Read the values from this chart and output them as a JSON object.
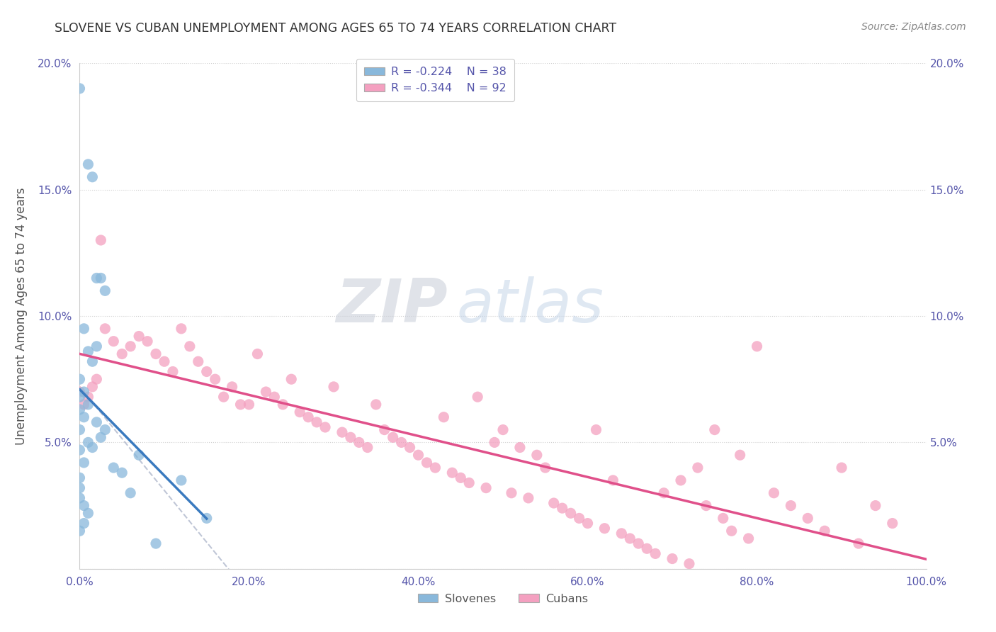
{
  "title": "SLOVENE VS CUBAN UNEMPLOYMENT AMONG AGES 65 TO 74 YEARS CORRELATION CHART",
  "source": "Source: ZipAtlas.com",
  "ylabel": "Unemployment Among Ages 65 to 74 years",
  "xlim": [
    0,
    1.0
  ],
  "ylim": [
    0,
    0.2
  ],
  "xticks": [
    0.0,
    0.2,
    0.4,
    0.6,
    0.8,
    1.0
  ],
  "yticks": [
    0.0,
    0.05,
    0.1,
    0.15,
    0.2
  ],
  "yticklabels": [
    "",
    "5.0%",
    "10.0%",
    "15.0%",
    "20.0%"
  ],
  "slovene_color": "#89b8db",
  "cuban_color": "#f4a0c0",
  "trendline_slovene_color": "#3a7abf",
  "trendline_cuban_color": "#e0508a",
  "refline_color": "#b0b8cc",
  "background_color": "#ffffff",
  "grid_color": "#d0d0d0",
  "tick_color": "#5555aa",
  "watermark_color": "#ccd5e8",
  "slovene_x": [
    0.0,
    0.0,
    0.0,
    0.0,
    0.0,
    0.0,
    0.0,
    0.0,
    0.0,
    0.0,
    0.005,
    0.005,
    0.005,
    0.005,
    0.005,
    0.005,
    0.01,
    0.01,
    0.01,
    0.01,
    0.01,
    0.015,
    0.015,
    0.015,
    0.02,
    0.02,
    0.02,
    0.025,
    0.025,
    0.03,
    0.03,
    0.04,
    0.05,
    0.06,
    0.07,
    0.09,
    0.12,
    0.15
  ],
  "slovene_y": [
    0.19,
    0.075,
    0.068,
    0.063,
    0.055,
    0.047,
    0.036,
    0.032,
    0.028,
    0.015,
    0.095,
    0.07,
    0.06,
    0.042,
    0.025,
    0.018,
    0.16,
    0.086,
    0.065,
    0.05,
    0.022,
    0.155,
    0.082,
    0.048,
    0.115,
    0.088,
    0.058,
    0.115,
    0.052,
    0.11,
    0.055,
    0.04,
    0.038,
    0.03,
    0.045,
    0.01,
    0.035,
    0.02
  ],
  "cuban_x": [
    0.0,
    0.005,
    0.01,
    0.015,
    0.02,
    0.025,
    0.03,
    0.04,
    0.05,
    0.06,
    0.07,
    0.08,
    0.09,
    0.1,
    0.11,
    0.12,
    0.13,
    0.14,
    0.15,
    0.16,
    0.17,
    0.18,
    0.19,
    0.2,
    0.21,
    0.22,
    0.23,
    0.24,
    0.25,
    0.26,
    0.27,
    0.28,
    0.29,
    0.3,
    0.31,
    0.32,
    0.33,
    0.34,
    0.35,
    0.36,
    0.37,
    0.38,
    0.39,
    0.4,
    0.41,
    0.42,
    0.43,
    0.44,
    0.45,
    0.46,
    0.47,
    0.48,
    0.49,
    0.5,
    0.51,
    0.52,
    0.53,
    0.54,
    0.55,
    0.56,
    0.57,
    0.58,
    0.59,
    0.6,
    0.61,
    0.62,
    0.63,
    0.64,
    0.65,
    0.66,
    0.67,
    0.68,
    0.69,
    0.7,
    0.71,
    0.72,
    0.73,
    0.74,
    0.75,
    0.76,
    0.77,
    0.78,
    0.79,
    0.8,
    0.82,
    0.84,
    0.86,
    0.88,
    0.9,
    0.92,
    0.94,
    0.96
  ],
  "cuban_y": [
    0.07,
    0.065,
    0.068,
    0.072,
    0.075,
    0.13,
    0.095,
    0.09,
    0.085,
    0.088,
    0.092,
    0.09,
    0.085,
    0.082,
    0.078,
    0.095,
    0.088,
    0.082,
    0.078,
    0.075,
    0.068,
    0.072,
    0.065,
    0.065,
    0.085,
    0.07,
    0.068,
    0.065,
    0.075,
    0.062,
    0.06,
    0.058,
    0.056,
    0.072,
    0.054,
    0.052,
    0.05,
    0.048,
    0.065,
    0.055,
    0.052,
    0.05,
    0.048,
    0.045,
    0.042,
    0.04,
    0.06,
    0.038,
    0.036,
    0.034,
    0.068,
    0.032,
    0.05,
    0.055,
    0.03,
    0.048,
    0.028,
    0.045,
    0.04,
    0.026,
    0.024,
    0.022,
    0.02,
    0.018,
    0.055,
    0.016,
    0.035,
    0.014,
    0.012,
    0.01,
    0.008,
    0.006,
    0.03,
    0.004,
    0.035,
    0.002,
    0.04,
    0.025,
    0.055,
    0.02,
    0.015,
    0.045,
    0.012,
    0.088,
    0.03,
    0.025,
    0.02,
    0.015,
    0.04,
    0.01,
    0.025,
    0.018
  ]
}
